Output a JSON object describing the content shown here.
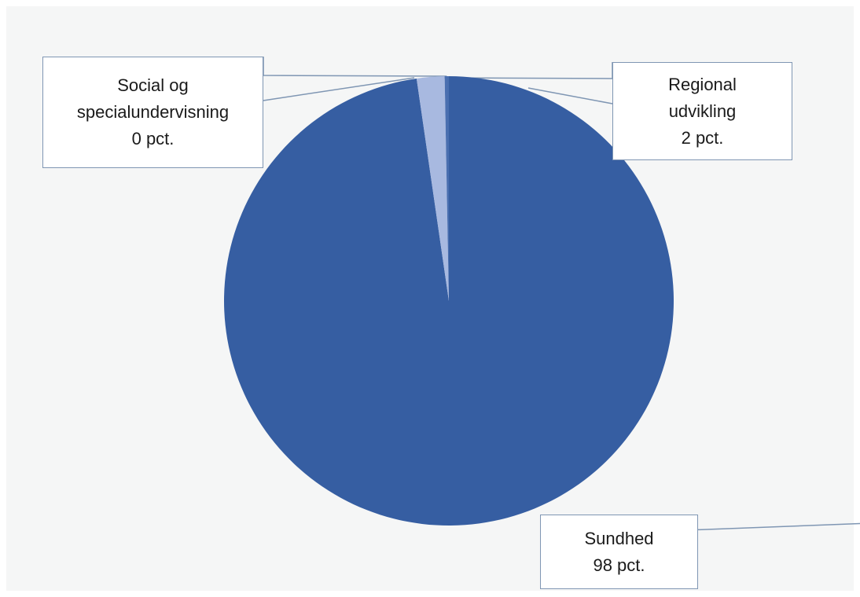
{
  "chart_data": {
    "type": "pie",
    "title": "",
    "slices": [
      {
        "category": "Sundhed",
        "value_label": "98 pct.",
        "value": 98,
        "color": "#365ea2"
      },
      {
        "category": "Regional udvikling",
        "value_label": "2 pct.",
        "value": 2,
        "color": "#a8b9e0"
      },
      {
        "category": "Social og specialundervisning",
        "value_label": "0 pct.",
        "value": 0.3,
        "color": "#4a6fb0"
      }
    ]
  },
  "labels": {
    "social": {
      "line1": "Social og",
      "line2": "specialundervisning",
      "line3": "0 pct."
    },
    "regional": {
      "line1": "Regional",
      "line2": "udvikling",
      "line3": "2 pct."
    },
    "sundhed": {
      "line1": "Sundhed",
      "line2": "98 pct."
    }
  }
}
